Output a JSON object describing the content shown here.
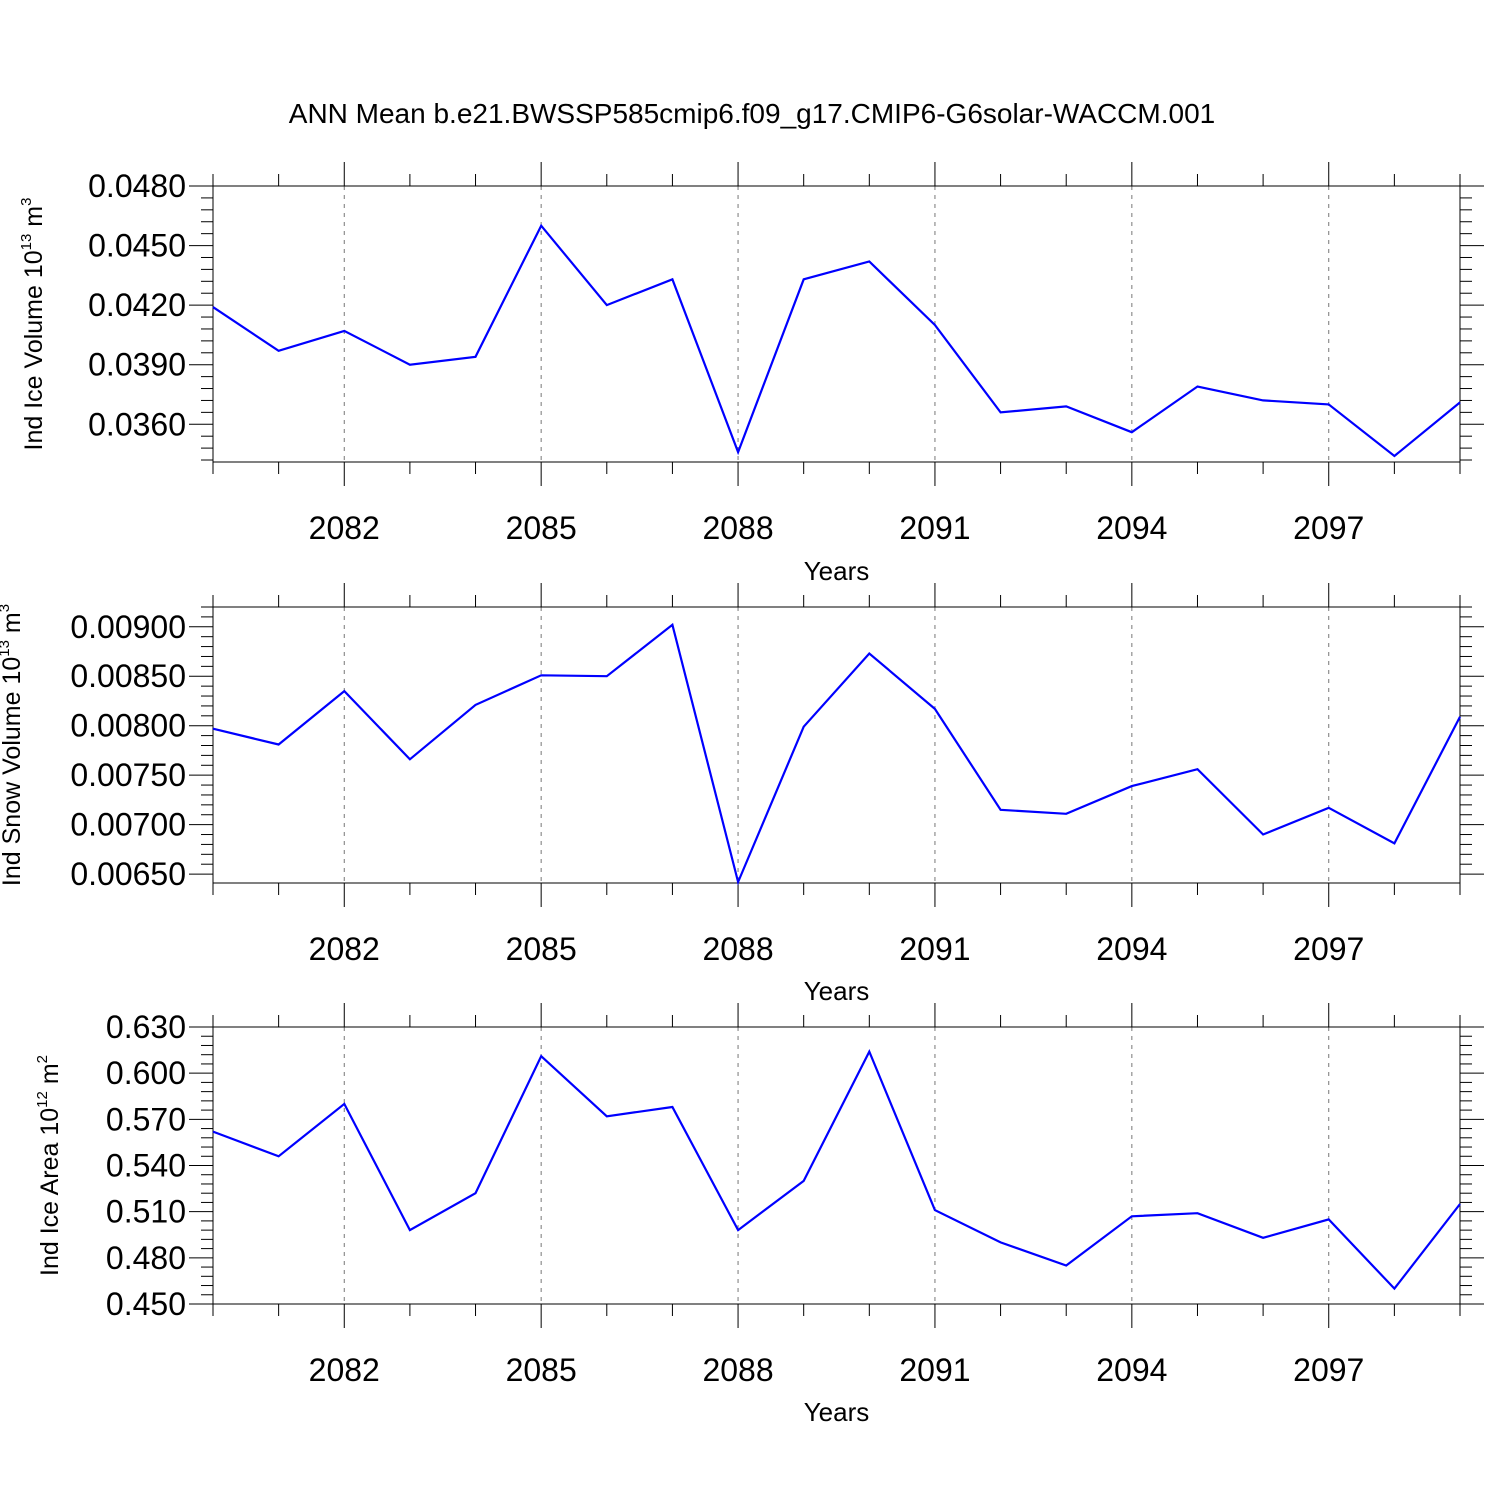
{
  "figure": {
    "title": "ANN Mean b.e21.BWSSP585cmip6.f09_g17.CMIP6-G6solar-WACCM.001"
  },
  "chart_data": [
    {
      "type": "line",
      "title": "ANN Mean b.e21.BWSSP585cmip6.f09_g17.CMIP6-G6solar-WACCM.001",
      "xlabel": "Years",
      "ylabel": {
        "base": "Ind Ice Volume 10",
        "exp": "13",
        "unit": " m",
        "unit_exp": "3"
      },
      "x": [
        2080,
        2081,
        2082,
        2083,
        2084,
        2085,
        2086,
        2087,
        2088,
        2089,
        2090,
        2091,
        2092,
        2093,
        2094,
        2095,
        2096,
        2097,
        2098,
        2099
      ],
      "values": [
        0.0419,
        0.0397,
        0.0407,
        0.039,
        0.0394,
        0.046,
        0.042,
        0.0433,
        0.0346,
        0.0433,
        0.0442,
        0.041,
        0.0366,
        0.0369,
        0.0356,
        0.0379,
        0.0372,
        0.037,
        0.0344,
        0.0371
      ],
      "xlim": [
        2080,
        2099
      ],
      "ylim": [
        0.0341,
        0.048
      ],
      "xticks": [
        2082,
        2085,
        2088,
        2091,
        2094,
        2097
      ],
      "xtick_labels": [
        "2082",
        "2085",
        "2088",
        "2091",
        "2094",
        "2097"
      ],
      "yticks": [
        0.036,
        0.039,
        0.042,
        0.045,
        0.048
      ],
      "ytick_labels": [
        "0.0360",
        "0.0390",
        "0.0420",
        "0.0450",
        "0.0480"
      ],
      "ymajor_step": 0.003,
      "yminor_step": 0.0006,
      "line_color": "#0000ff",
      "grid": "dashed vertical at major x ticks"
    },
    {
      "type": "line",
      "xlabel": "Years",
      "ylabel": {
        "base": "Ind Snow Volume 10",
        "exp": "13",
        "unit": " m",
        "unit_exp": "3"
      },
      "x": [
        2080,
        2081,
        2082,
        2083,
        2084,
        2085,
        2086,
        2087,
        2088,
        2089,
        2090,
        2091,
        2092,
        2093,
        2094,
        2095,
        2096,
        2097,
        2098,
        2099
      ],
      "values": [
        0.00797,
        0.00781,
        0.00835,
        0.00766,
        0.00821,
        0.00851,
        0.0085,
        0.00902,
        0.00642,
        0.00799,
        0.00873,
        0.00817,
        0.00715,
        0.00711,
        0.00739,
        0.00756,
        0.0069,
        0.00717,
        0.00681,
        0.00809
      ],
      "xlim": [
        2080,
        2099
      ],
      "ylim": [
        0.00641,
        0.0092
      ],
      "xticks": [
        2082,
        2085,
        2088,
        2091,
        2094,
        2097
      ],
      "xtick_labels": [
        "2082",
        "2085",
        "2088",
        "2091",
        "2094",
        "2097"
      ],
      "yticks": [
        0.0065,
        0.007,
        0.0075,
        0.008,
        0.0085,
        0.009
      ],
      "ytick_labels": [
        "0.00650",
        "0.00700",
        "0.00750",
        "0.00800",
        "0.00850",
        "0.00900"
      ],
      "ymajor_step": 0.0005,
      "yminor_step": 0.0001,
      "line_color": "#0000ff",
      "grid": "dashed vertical at major x ticks"
    },
    {
      "type": "line",
      "xlabel": "Years",
      "ylabel": {
        "base": "Ind Ice Area 10",
        "exp": "12",
        "unit": " m",
        "unit_exp": "2"
      },
      "x": [
        2080,
        2081,
        2082,
        2083,
        2084,
        2085,
        2086,
        2087,
        2088,
        2089,
        2090,
        2091,
        2092,
        2093,
        2094,
        2095,
        2096,
        2097,
        2098,
        2099
      ],
      "values": [
        0.562,
        0.546,
        0.58,
        0.498,
        0.522,
        0.611,
        0.572,
        0.578,
        0.498,
        0.53,
        0.614,
        0.511,
        0.49,
        0.475,
        0.507,
        0.509,
        0.493,
        0.505,
        0.46,
        0.515
      ],
      "xlim": [
        2080,
        2099
      ],
      "ylim": [
        0.45,
        0.63
      ],
      "xticks": [
        2082,
        2085,
        2088,
        2091,
        2094,
        2097
      ],
      "xtick_labels": [
        "2082",
        "2085",
        "2088",
        "2091",
        "2094",
        "2097"
      ],
      "yticks": [
        0.45,
        0.48,
        0.51,
        0.54,
        0.57,
        0.6,
        0.63
      ],
      "ytick_labels": [
        "0.450",
        "0.480",
        "0.510",
        "0.540",
        "0.570",
        "0.600",
        "0.630"
      ],
      "ymajor_step": 0.03,
      "yminor_step": 0.006,
      "line_color": "#0000ff",
      "grid": "dashed vertical at major x ticks"
    }
  ]
}
